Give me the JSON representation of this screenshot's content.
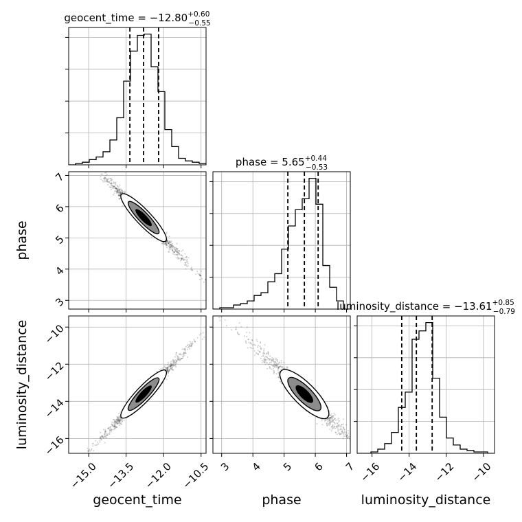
{
  "chart_data": {
    "type": "corner",
    "parameters": [
      "geocent_time",
      "phase",
      "luminosity_distance"
    ],
    "titles": {
      "geocent_time": {
        "name": "geocent_time",
        "median": "−12.80",
        "plus": "+0.60",
        "minus": "−0.55"
      },
      "phase": {
        "name": "phase",
        "median": "5.65",
        "plus": "+0.44",
        "minus": "−0.53"
      },
      "luminosity_distance": {
        "name": "luminosity_distance",
        "median": "−13.61",
        "plus": "+0.85",
        "minus": "−0.79"
      }
    },
    "ranges": {
      "geocent_time": [
        -15.8,
        -10.3
      ],
      "phase": [
        2.72,
        7.12
      ],
      "luminosity_distance": [
        -16.8,
        -9.4
      ]
    },
    "ticks": {
      "geocent_time": {
        "values": [
          -15.0,
          -13.5,
          -12.0,
          -10.5
        ],
        "labels": [
          "−15.0",
          "−13.5",
          "−12.0",
          "−10.5"
        ]
      },
      "phase": {
        "values": [
          3,
          4,
          5,
          6,
          7
        ],
        "labels": [
          "3",
          "4",
          "5",
          "6",
          "7"
        ]
      },
      "luminosity_distance": {
        "values": [
          -16,
          -14,
          -12,
          -10
        ],
        "labels": [
          "−16",
          "−14",
          "−12",
          "−10"
        ]
      }
    },
    "quantiles": {
      "geocent_time": [
        -13.35,
        -12.8,
        -12.2
      ],
      "phase": [
        5.12,
        5.65,
        6.09
      ],
      "luminosity_distance": [
        -14.4,
        -13.61,
        -12.76
      ]
    },
    "histograms": {
      "geocent_time": {
        "edges": [
          -15.8,
          -15.525,
          -15.25,
          -14.975,
          -14.7,
          -14.425,
          -14.15,
          -13.875,
          -13.6,
          -13.325,
          -13.05,
          -12.775,
          -12.5,
          -12.225,
          -11.95,
          -11.675,
          -11.4,
          -11.125,
          -10.85,
          -10.575,
          -10.3
        ],
        "counts": [
          0,
          1,
          2,
          4,
          6,
          10,
          19,
          36,
          64,
          87,
          99,
          100,
          75,
          56,
          27,
          14,
          5,
          3,
          2,
          1
        ]
      },
      "phase": {
        "edges": [
          2.72,
          2.94,
          3.16,
          3.38,
          3.6,
          3.82,
          4.04,
          4.26,
          4.48,
          4.7,
          4.92,
          5.14,
          5.36,
          5.58,
          5.8,
          6.02,
          6.24,
          6.46,
          6.68,
          6.9,
          7.12
        ],
        "counts": [
          0,
          1,
          1,
          3,
          4,
          6,
          10,
          12,
          20,
          26,
          44,
          61,
          73,
          81,
          96,
          77,
          32,
          16,
          6,
          0
        ]
      },
      "luminosity_distance": {
        "edges": [
          -16.8,
          -16.43,
          -16.06,
          -15.69,
          -15.32,
          -14.95,
          -14.58,
          -14.21,
          -13.84,
          -13.47,
          -13.1,
          -12.73,
          -12.36,
          -11.99,
          -11.62,
          -11.25,
          -10.88,
          -10.51,
          -10.14,
          -9.77,
          -9.4
        ],
        "counts": [
          0,
          0,
          1,
          3,
          7,
          15,
          33,
          44,
          82,
          88,
          94,
          54,
          26,
          11,
          6,
          3,
          2,
          1,
          1,
          0
        ]
      }
    },
    "axis_labels": {
      "x": [
        "geocent_time",
        "phase",
        "luminosity_distance"
      ],
      "y": [
        "",
        "phase",
        "luminosity_distance"
      ]
    },
    "correlations": {
      "phase_vs_geocent_time": -0.98,
      "luminosity_distance_vs_geocent_time": 0.98,
      "luminosity_distance_vs_phase": -0.95
    },
    "grid": true,
    "contour_levels": [
      "white-outer",
      "gray-inner",
      "black-core"
    ]
  }
}
